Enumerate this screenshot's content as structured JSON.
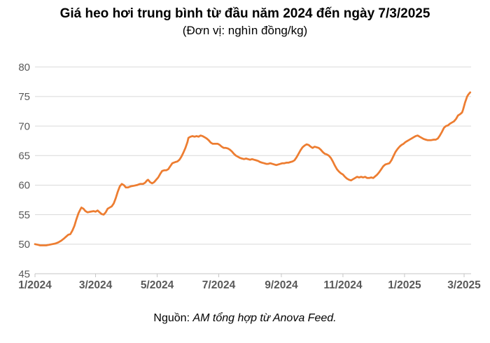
{
  "title": "Giá heo hơi trung bình từ đầu năm 2024 đến ngày 7/3/2025",
  "subtitle": "(Đơn vị: nghìn đồng/kg)",
  "footer": {
    "label": "Nguồn:",
    "source": "AM tổng hợp từ Anova Feed."
  },
  "colors": {
    "line": "#ED7D31",
    "grid": "#D9D9D9",
    "axis": "#C6C6C6",
    "tick_label": "#595959"
  },
  "chart_data": {
    "type": "line",
    "title": "Giá heo hơi trung bình từ đầu năm 2024 đến ngày 7/3/2025",
    "unit": "nghìn đồng/kg",
    "grid": true,
    "legend": "none",
    "y_axis": {
      "min": 45,
      "max": 80,
      "step": 5,
      "ticks": [
        45,
        50,
        55,
        60,
        65,
        70,
        75,
        80
      ]
    },
    "x_axis": {
      "range_days": [
        0,
        431
      ],
      "ticks": [
        {
          "day": 0,
          "label": "1/2024"
        },
        {
          "day": 60,
          "label": "3/2024"
        },
        {
          "day": 121,
          "label": "5/2024"
        },
        {
          "day": 182,
          "label": "7/2024"
        },
        {
          "day": 244,
          "label": "9/2024"
        },
        {
          "day": 305,
          "label": "11/2024"
        },
        {
          "day": 366,
          "label": "1/2025"
        },
        {
          "day": 425,
          "label": "3/2025"
        }
      ]
    },
    "series": [
      {
        "name": "Giá heo hơi trung bình",
        "color": "#ED7D31",
        "points": [
          [
            0,
            50.0
          ],
          [
            3,
            49.9
          ],
          [
            5,
            49.8
          ],
          [
            8,
            49.8
          ],
          [
            11,
            49.8
          ],
          [
            14,
            49.9
          ],
          [
            17,
            50.0
          ],
          [
            20,
            50.1
          ],
          [
            23,
            50.3
          ],
          [
            26,
            50.6
          ],
          [
            29,
            51.0
          ],
          [
            31,
            51.3
          ],
          [
            33,
            51.6
          ],
          [
            35,
            51.7
          ],
          [
            37,
            52.3
          ],
          [
            39,
            53.1
          ],
          [
            41,
            54.2
          ],
          [
            43,
            55.2
          ],
          [
            45,
            55.9
          ],
          [
            46,
            56.2
          ],
          [
            48,
            56.0
          ],
          [
            50,
            55.6
          ],
          [
            52,
            55.4
          ],
          [
            55,
            55.5
          ],
          [
            58,
            55.6
          ],
          [
            60,
            55.5
          ],
          [
            62,
            55.7
          ],
          [
            64,
            55.4
          ],
          [
            66,
            55.1
          ],
          [
            68,
            55.0
          ],
          [
            70,
            55.4
          ],
          [
            72,
            56.0
          ],
          [
            74,
            56.2
          ],
          [
            76,
            56.4
          ],
          [
            78,
            56.9
          ],
          [
            80,
            57.8
          ],
          [
            82,
            58.9
          ],
          [
            84,
            59.8
          ],
          [
            86,
            60.2
          ],
          [
            88,
            60.0
          ],
          [
            90,
            59.6
          ],
          [
            92,
            59.6
          ],
          [
            95,
            59.8
          ],
          [
            98,
            59.9
          ],
          [
            101,
            60.0
          ],
          [
            104,
            60.2
          ],
          [
            107,
            60.2
          ],
          [
            109,
            60.4
          ],
          [
            111,
            60.8
          ],
          [
            112,
            60.9
          ],
          [
            113,
            60.7
          ],
          [
            114,
            60.5
          ],
          [
            116,
            60.3
          ],
          [
            118,
            60.5
          ],
          [
            120,
            60.9
          ],
          [
            122,
            61.3
          ],
          [
            124,
            61.9
          ],
          [
            126,
            62.4
          ],
          [
            128,
            62.5
          ],
          [
            130,
            62.5
          ],
          [
            132,
            62.7
          ],
          [
            134,
            63.2
          ],
          [
            136,
            63.7
          ],
          [
            139,
            63.9
          ],
          [
            141,
            64.0
          ],
          [
            143,
            64.3
          ],
          [
            145,
            64.8
          ],
          [
            147,
            65.5
          ],
          [
            149,
            66.3
          ],
          [
            151,
            67.3
          ],
          [
            152,
            68.0
          ],
          [
            154,
            68.2
          ],
          [
            156,
            68.3
          ],
          [
            158,
            68.2
          ],
          [
            160,
            68.3
          ],
          [
            162,
            68.2
          ],
          [
            164,
            68.4
          ],
          [
            166,
            68.3
          ],
          [
            168,
            68.1
          ],
          [
            170,
            67.9
          ],
          [
            172,
            67.6
          ],
          [
            174,
            67.2
          ],
          [
            176,
            67.0
          ],
          [
            179,
            67.0
          ],
          [
            181,
            67.0
          ],
          [
            183,
            66.8
          ],
          [
            185,
            66.5
          ],
          [
            187,
            66.3
          ],
          [
            189,
            66.3
          ],
          [
            191,
            66.2
          ],
          [
            193,
            66.0
          ],
          [
            195,
            65.7
          ],
          [
            197,
            65.3
          ],
          [
            199,
            65.0
          ],
          [
            201,
            64.8
          ],
          [
            203,
            64.6
          ],
          [
            205,
            64.5
          ],
          [
            207,
            64.4
          ],
          [
            209,
            64.5
          ],
          [
            211,
            64.4
          ],
          [
            213,
            64.3
          ],
          [
            215,
            64.4
          ],
          [
            217,
            64.3
          ],
          [
            219,
            64.2
          ],
          [
            221,
            64.1
          ],
          [
            223,
            63.9
          ],
          [
            225,
            63.8
          ],
          [
            227,
            63.7
          ],
          [
            229,
            63.6
          ],
          [
            231,
            63.6
          ],
          [
            233,
            63.7
          ],
          [
            235,
            63.6
          ],
          [
            237,
            63.5
          ],
          [
            239,
            63.4
          ],
          [
            241,
            63.5
          ],
          [
            243,
            63.6
          ],
          [
            245,
            63.7
          ],
          [
            247,
            63.7
          ],
          [
            249,
            63.8
          ],
          [
            251,
            63.8
          ],
          [
            253,
            63.9
          ],
          [
            255,
            64.0
          ],
          [
            257,
            64.2
          ],
          [
            259,
            64.7
          ],
          [
            261,
            65.3
          ],
          [
            263,
            65.9
          ],
          [
            265,
            66.4
          ],
          [
            267,
            66.7
          ],
          [
            269,
            66.9
          ],
          [
            271,
            66.8
          ],
          [
            273,
            66.5
          ],
          [
            275,
            66.3
          ],
          [
            277,
            66.5
          ],
          [
            279,
            66.4
          ],
          [
            281,
            66.3
          ],
          [
            283,
            66.0
          ],
          [
            285,
            65.6
          ],
          [
            287,
            65.3
          ],
          [
            289,
            65.2
          ],
          [
            291,
            65.0
          ],
          [
            293,
            64.6
          ],
          [
            295,
            64.0
          ],
          [
            297,
            63.3
          ],
          [
            299,
            62.7
          ],
          [
            301,
            62.3
          ],
          [
            303,
            62.0
          ],
          [
            305,
            61.8
          ],
          [
            307,
            61.4
          ],
          [
            309,
            61.1
          ],
          [
            311,
            60.9
          ],
          [
            313,
            60.8
          ],
          [
            315,
            61.0
          ],
          [
            317,
            61.2
          ],
          [
            319,
            61.4
          ],
          [
            321,
            61.3
          ],
          [
            323,
            61.4
          ],
          [
            325,
            61.3
          ],
          [
            327,
            61.4
          ],
          [
            329,
            61.2
          ],
          [
            331,
            61.2
          ],
          [
            333,
            61.3
          ],
          [
            335,
            61.2
          ],
          [
            337,
            61.5
          ],
          [
            339,
            61.8
          ],
          [
            341,
            62.2
          ],
          [
            343,
            62.7
          ],
          [
            345,
            63.2
          ],
          [
            347,
            63.5
          ],
          [
            349,
            63.6
          ],
          [
            351,
            63.7
          ],
          [
            353,
            64.2
          ],
          [
            355,
            64.9
          ],
          [
            357,
            65.6
          ],
          [
            359,
            66.1
          ],
          [
            361,
            66.5
          ],
          [
            363,
            66.8
          ],
          [
            365,
            67.0
          ],
          [
            367,
            67.3
          ],
          [
            369,
            67.5
          ],
          [
            371,
            67.7
          ],
          [
            373,
            67.9
          ],
          [
            375,
            68.1
          ],
          [
            377,
            68.3
          ],
          [
            379,
            68.4
          ],
          [
            381,
            68.2
          ],
          [
            383,
            68.0
          ],
          [
            385,
            67.8
          ],
          [
            387,
            67.7
          ],
          [
            389,
            67.6
          ],
          [
            392,
            67.6
          ],
          [
            395,
            67.7
          ],
          [
            397,
            67.7
          ],
          [
            399,
            67.9
          ],
          [
            401,
            68.4
          ],
          [
            403,
            69.0
          ],
          [
            405,
            69.7
          ],
          [
            407,
            70.0
          ],
          [
            409,
            70.1
          ],
          [
            411,
            70.4
          ],
          [
            413,
            70.6
          ],
          [
            415,
            70.8
          ],
          [
            417,
            71.2
          ],
          [
            419,
            71.8
          ],
          [
            421,
            72.0
          ],
          [
            423,
            72.3
          ],
          [
            424,
            72.8
          ],
          [
            425,
            73.4
          ],
          [
            426,
            74.0
          ],
          [
            427,
            74.5
          ],
          [
            428,
            75.0
          ],
          [
            429,
            75.3
          ],
          [
            430,
            75.5
          ],
          [
            431,
            75.7
          ]
        ]
      }
    ]
  }
}
